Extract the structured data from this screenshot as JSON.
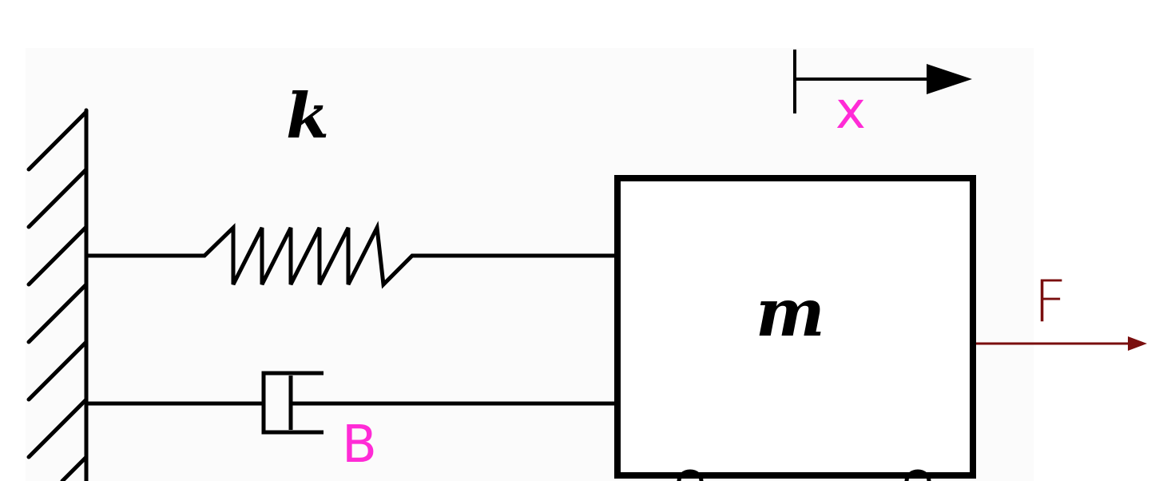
{
  "diagram": {
    "spring_label": "k",
    "mass_label": "m",
    "damper_label": "B",
    "displacement_label": "x",
    "force_label": "F"
  },
  "colors": {
    "ink": "#000000",
    "background_panel": "#fbfbfb",
    "annotation_magenta": "#ff2bd6",
    "force_arrow": "#7a0e0e"
  }
}
